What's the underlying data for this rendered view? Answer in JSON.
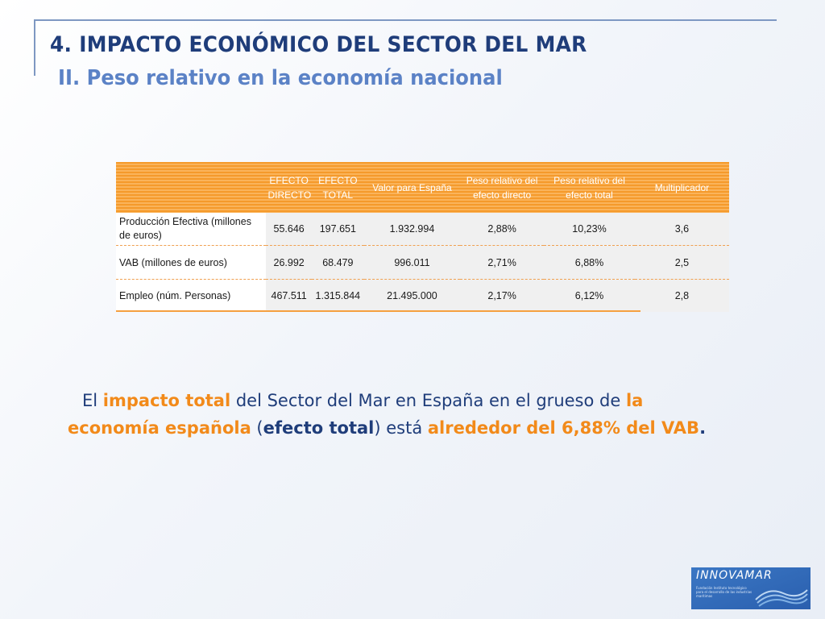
{
  "slide": {
    "title": "4. IMPACTO ECONÓMICO DEL SECTOR DEL MAR",
    "subtitle": "II. Peso relativo en la economía nacional"
  },
  "table": {
    "headers": [
      "",
      "EFECTO DIRECTO",
      "EFECTO TOTAL",
      "Valor para España",
      "Peso relativo del efecto directo",
      "Peso relativo del efecto total",
      "Multiplicador"
    ],
    "rows": [
      [
        "Producción Efectiva (millones de euros)",
        "55.646",
        "197.651",
        "1.932.994",
        "2,88%",
        "10,23%",
        "3,6"
      ],
      [
        "VAB (millones de euros)",
        "26.992",
        "68.479",
        "996.011",
        "2,71%",
        "6,88%",
        "2,5"
      ],
      [
        "Empleo (núm. Personas)",
        "467.511",
        "1.315.844",
        "21.495.000",
        "2,17%",
        "6,12%",
        "2,8"
      ]
    ]
  },
  "summary": {
    "p1": "El ",
    "p2": "impacto total",
    "p3": " del Sector del Mar en España en el grueso de ",
    "p4": "la",
    "p5": "economía española",
    "p6": " (",
    "p7": "efecto total",
    "p8": ") está ",
    "p9": "alrededor del 6,88% del VAB",
    "p10": "."
  },
  "logo": {
    "name": "INNOVAMAR",
    "tagline": "Fundación Instituto tecnológico para el desarrollo de las industrias marítimas"
  },
  "colors": {
    "title": "#1f3d7a",
    "subtitle": "#5b82c6",
    "accent_orange": "#f28a1a",
    "header_bg": "#f59a2b"
  }
}
